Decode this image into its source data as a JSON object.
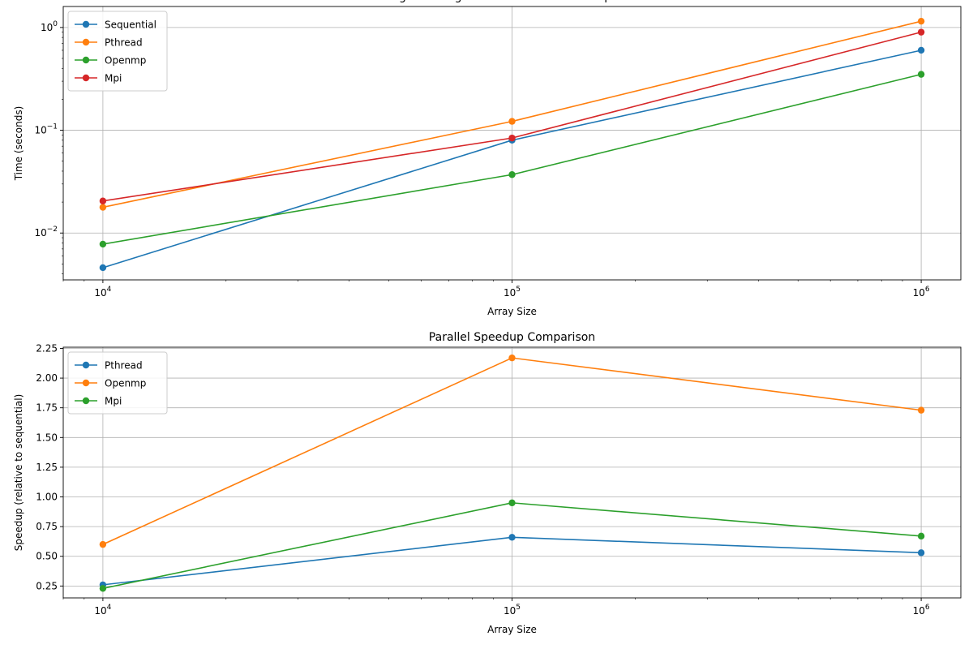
{
  "chart_data": [
    {
      "type": "line",
      "title": "Merge Sort Algorithm Performance Comparison",
      "xlabel": "Array Size",
      "ylabel": "Time (seconds)",
      "xscale": "log",
      "yscale": "log",
      "x": [
        10000,
        100000,
        1000000
      ],
      "xlim": [
        8000,
        1250000
      ],
      "ylim": [
        0.0035,
        1.6
      ],
      "x_ticks": [
        {
          "value": 10000,
          "base": "10",
          "exp": "4"
        },
        {
          "value": 100000,
          "base": "10",
          "exp": "5"
        },
        {
          "value": 1000000,
          "base": "10",
          "exp": "6"
        }
      ],
      "y_ticks": [
        {
          "value": 0.01,
          "base": "10",
          "exp": "−2"
        },
        {
          "value": 0.1,
          "base": "10",
          "exp": "−1"
        },
        {
          "value": 1,
          "base": "10",
          "exp": "0"
        }
      ],
      "grid": true,
      "legend_position": "top-left",
      "series": [
        {
          "name": "Sequential",
          "color": "#1f77b4",
          "values": [
            0.0046,
            0.08,
            0.6
          ]
        },
        {
          "name": "Pthread",
          "color": "#ff7f0e",
          "values": [
            0.0178,
            0.122,
            1.15
          ]
        },
        {
          "name": "Openmp",
          "color": "#2ca02c",
          "values": [
            0.0078,
            0.037,
            0.35
          ]
        },
        {
          "name": "Mpi",
          "color": "#d62728",
          "values": [
            0.0205,
            0.084,
            0.9
          ]
        }
      ]
    },
    {
      "type": "line",
      "title": "Parallel Speedup Comparison",
      "xlabel": "Array Size",
      "ylabel": "Speedup (relative to sequential)",
      "xscale": "log",
      "yscale": "linear",
      "x": [
        10000,
        100000,
        1000000
      ],
      "xlim": [
        8000,
        1250000
      ],
      "ylim": [
        0.15,
        2.26
      ],
      "x_ticks": [
        {
          "value": 10000,
          "base": "10",
          "exp": "4"
        },
        {
          "value": 100000,
          "base": "10",
          "exp": "5"
        },
        {
          "value": 1000000,
          "base": "10",
          "exp": "6"
        }
      ],
      "y_ticks": [
        {
          "value": 0.25,
          "label": "0.25"
        },
        {
          "value": 0.5,
          "label": "0.50"
        },
        {
          "value": 0.75,
          "label": "0.75"
        },
        {
          "value": 1.0,
          "label": "1.00"
        },
        {
          "value": 1.25,
          "label": "1.25"
        },
        {
          "value": 1.5,
          "label": "1.50"
        },
        {
          "value": 1.75,
          "label": "1.75"
        },
        {
          "value": 2.0,
          "label": "2.00"
        },
        {
          "value": 2.25,
          "label": "2.25"
        }
      ],
      "grid": true,
      "legend_position": "top-left",
      "series": [
        {
          "name": "Pthread",
          "color": "#1f77b4",
          "values": [
            0.26,
            0.66,
            0.53
          ]
        },
        {
          "name": "Openmp",
          "color": "#ff7f0e",
          "values": [
            0.6,
            2.17,
            1.73
          ]
        },
        {
          "name": "Mpi",
          "color": "#2ca02c",
          "values": [
            0.23,
            0.95,
            0.67
          ]
        }
      ]
    }
  ]
}
